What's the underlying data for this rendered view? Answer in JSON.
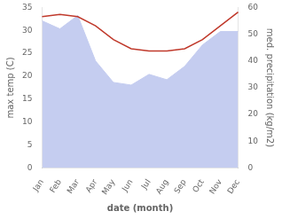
{
  "chart_data": {
    "type": "line",
    "xlabel": "date (month)",
    "ylabel": "max temp (C)",
    "y2label": "med. precipitation (kg/m2)",
    "categories": [
      "Jan",
      "Feb",
      "Mar",
      "Apr",
      "May",
      "Jun",
      "Jul",
      "Aug",
      "Sep",
      "Oct",
      "Nov",
      "Dec"
    ],
    "series": [
      {
        "type": "area",
        "axis": "y2",
        "color": "#c5cdf0",
        "values": [
          55,
          52,
          57,
          40,
          32,
          31,
          35,
          33,
          38,
          46,
          51,
          51
        ]
      },
      {
        "type": "line",
        "axis": "y",
        "color": "#c0392b",
        "values": [
          33,
          33.5,
          33,
          31,
          28,
          26,
          25.5,
          25.5,
          26,
          28,
          31,
          34
        ]
      }
    ],
    "ylim": [
      0,
      35
    ],
    "yticks": [
      0,
      5,
      10,
      15,
      20,
      25,
      30,
      35
    ],
    "y2lim": [
      0,
      60
    ],
    "y2ticks": [
      0,
      10,
      20,
      30,
      40,
      50,
      60
    ],
    "grid": false
  }
}
